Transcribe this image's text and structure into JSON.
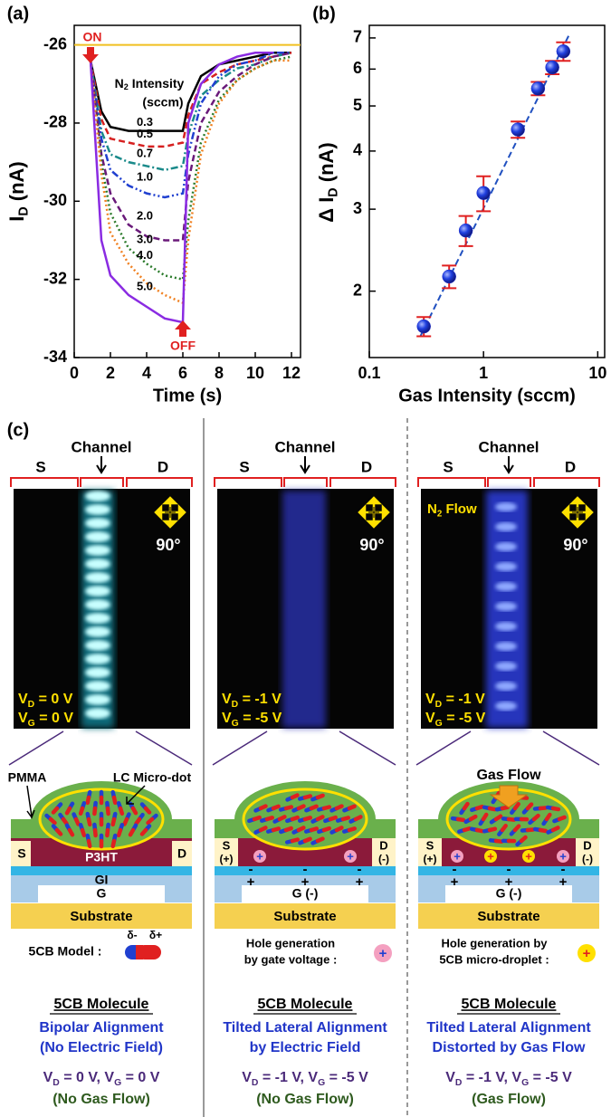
{
  "chart_data": [
    {
      "type": "line",
      "label": "(a)",
      "xlabel": "Time (s)",
      "ylabel": [
        "I",
        "D",
        " (nA)"
      ],
      "legend_title": [
        "N",
        "2",
        " Intensity"
      ],
      "legend_unit": "(sccm)",
      "annotations": {
        "on": "ON",
        "off": "OFF"
      },
      "x": [
        0.9,
        1.5,
        2,
        3,
        4,
        5,
        6,
        6.3,
        7,
        8,
        9,
        10,
        11,
        12
      ],
      "series": [
        {
          "name": "0.3",
          "color": "#000000",
          "style": "solid",
          "values": [
            -26.4,
            -27.7,
            -28.1,
            -28.2,
            -28.2,
            -28.2,
            -28.2,
            -27.5,
            -26.8,
            -26.5,
            -26.4,
            -26.3,
            -26.2,
            -26.2
          ]
        },
        {
          "name": "0.5",
          "color": "#d62020",
          "style": "dashed",
          "values": [
            -26.4,
            -27.9,
            -28.4,
            -28.5,
            -28.6,
            -28.6,
            -28.5,
            -27.8,
            -27.0,
            -26.7,
            -26.5,
            -26.4,
            -26.3,
            -26.2
          ]
        },
        {
          "name": "0.7",
          "color": "#1a8a8a",
          "style": "dashdot",
          "values": [
            -26.4,
            -28.2,
            -28.8,
            -29.0,
            -29.1,
            -29.2,
            -29.1,
            -28.3,
            -27.3,
            -26.9,
            -26.6,
            -26.5,
            -26.3,
            -26.2
          ]
        },
        {
          "name": "1.0",
          "color": "#2040d0",
          "style": "dashdotdot",
          "values": [
            -26.4,
            -28.4,
            -29.2,
            -29.6,
            -29.8,
            -29.9,
            -29.8,
            -28.8,
            -27.5,
            -26.8,
            -26.5,
            -26.4,
            -26.2,
            -26.2
          ]
        },
        {
          "name": "2.0",
          "color": "#6a1a7a",
          "style": "dashed",
          "values": [
            -26.4,
            -28.8,
            -29.8,
            -30.6,
            -30.9,
            -31.0,
            -31.0,
            -29.5,
            -28.0,
            -27.2,
            -26.8,
            -26.5,
            -26.3,
            -26.2
          ]
        },
        {
          "name": "3.0",
          "color": "#2a7a2a",
          "style": "dotted",
          "values": [
            -26.4,
            -29.0,
            -30.3,
            -31.2,
            -31.6,
            -31.9,
            -32.0,
            -30.5,
            -28.5,
            -27.4,
            -26.9,
            -26.6,
            -26.4,
            -26.3
          ]
        },
        {
          "name": "4.0",
          "color": "#f08020",
          "style": "dotted",
          "values": [
            -26.4,
            -29.3,
            -30.8,
            -31.6,
            -32.1,
            -32.4,
            -32.6,
            -31.0,
            -28.8,
            -27.5,
            -26.9,
            -26.6,
            -26.4,
            -26.4
          ]
        },
        {
          "name": "5.0",
          "color": "#8a2be2",
          "style": "solid",
          "values": [
            -26.4,
            -31.0,
            -31.9,
            -32.4,
            -32.7,
            -33.0,
            -33.1,
            -28.0,
            -27.0,
            -26.5,
            -26.3,
            -26.2,
            -26.2,
            null
          ]
        }
      ],
      "hline": {
        "value": -26,
        "color": "#f0c020"
      },
      "xlim": [
        0,
        12.5
      ],
      "ylim": [
        -34,
        -25.5
      ],
      "xticks": [
        0,
        2,
        4,
        6,
        8,
        10,
        12
      ],
      "yticks": [
        -34,
        -32,
        -30,
        -28,
        -26
      ]
    },
    {
      "type": "scatter",
      "label": "(b)",
      "xlabel": "Gas Intensity (sccm)",
      "ylabel": [
        "Δ I",
        "D",
        " (nA)"
      ],
      "x": [
        0.3,
        0.5,
        0.7,
        1.0,
        2.0,
        3.0,
        4.0,
        5.0
      ],
      "values": [
        1.68,
        2.15,
        2.7,
        3.25,
        4.45,
        5.45,
        6.05,
        6.55
      ],
      "errors": [
        0.08,
        0.12,
        0.2,
        0.28,
        0.18,
        0.18,
        0.2,
        0.3
      ],
      "color": "#2030d0",
      "error_color": "#e02020",
      "fit": {
        "x": [
          0.28,
          5.6
        ],
        "values": [
          1.6,
          7.1
        ],
        "color": "#2050c0"
      },
      "log_x": true,
      "log_y": true,
      "xlim": [
        0.1,
        11.5
      ],
      "ylim": [
        1.44,
        7.45
      ],
      "xticks": [
        0.1,
        1,
        10
      ],
      "yticks": [
        2,
        3,
        4,
        5,
        6,
        7
      ]
    }
  ],
  "panel_c": {
    "label": "(c)",
    "columns": [
      {
        "channel": "Channel",
        "source": "S",
        "drain": "D",
        "angle": "90°",
        "image_text": [
          [
            "V",
            "D",
            " = 0 V"
          ],
          [
            "V",
            "G",
            " = 0 V"
          ]
        ],
        "diagram": {
          "pmma": "PMMA",
          "lc": "LC Micro-dot",
          "source": "S",
          "drain": "D",
          "p3ht": "P3HT",
          "gi": "GI",
          "gate": "G",
          "substrate": "Substrate",
          "model": "5CB Model :",
          "minus": "δ-",
          "plus": "δ+"
        },
        "caption": {
          "title": "5CB Molecule",
          "lines": [
            "Bipolar Alignment",
            "(No Electric Field)"
          ],
          "voltage": [
            "V",
            "D",
            " = 0 V, V",
            "G",
            " = 0 V"
          ],
          "condition": "(No Gas Flow)"
        }
      },
      {
        "channel": "Channel",
        "source": "S",
        "drain": "D",
        "angle": "90°",
        "image_text": [
          [
            "V",
            "D",
            " = -1 V"
          ],
          [
            "V",
            "G",
            " = -5 V"
          ]
        ],
        "diagram": {
          "source": "S",
          "source_sign": "(+)",
          "drain": "D",
          "drain_sign": "(-)",
          "gi_charges": [
            "-",
            "-",
            "-"
          ],
          "gate_charges": [
            "+",
            "+",
            "+"
          ],
          "holes": [
            "+",
            "+"
          ],
          "gate": "G (-)",
          "substrate": "Substrate",
          "note": [
            "Hole generation",
            "by gate voltage :"
          ],
          "note_symbol": "+"
        },
        "caption": {
          "title": "5CB Molecule",
          "lines": [
            "Tilted Lateral Alignment",
            "by Electric Field"
          ],
          "voltage": [
            "V",
            "D",
            " = -1 V, V",
            "G",
            " = -5 V"
          ],
          "condition": "(No Gas Flow)"
        }
      },
      {
        "channel": "Channel",
        "source": "S",
        "drain": "D",
        "angle": "90°",
        "flow_label": [
          "N",
          "2",
          " Flow"
        ],
        "image_text": [
          [
            "V",
            "D",
            " = -1 V"
          ],
          [
            "V",
            "G",
            " = -5 V"
          ]
        ],
        "diagram": {
          "gas": "Gas Flow",
          "source": "S",
          "source_sign": "(+)",
          "drain": "D",
          "drain_sign": "(-)",
          "gi_charges": [
            "-",
            "-",
            "-"
          ],
          "gate_charges": [
            "+",
            "+",
            "+"
          ],
          "holes": [
            "+",
            "+"
          ],
          "droplet_holes": [
            "+",
            "+"
          ],
          "gate": "G (-)",
          "substrate": "Substrate",
          "note": [
            "Hole generation by",
            "5CB micro-droplet :"
          ],
          "note_symbol": "+"
        },
        "caption": {
          "title": "5CB Molecule",
          "lines": [
            "Tilted Lateral Alignment",
            "Distorted by Gas Flow"
          ],
          "voltage": [
            "V",
            "D",
            " = -1 V, V",
            "G",
            " = -5 V"
          ],
          "condition": "(Gas Flow)"
        }
      }
    ]
  }
}
